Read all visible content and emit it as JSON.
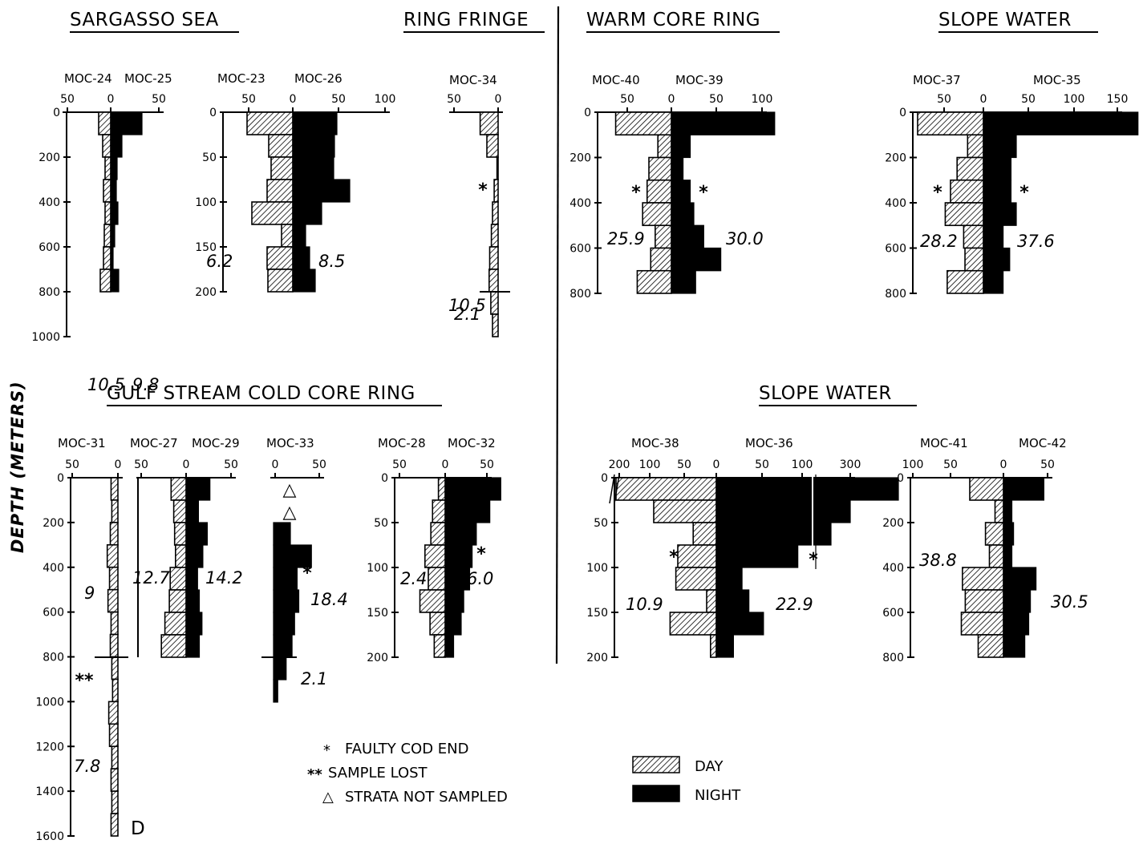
{
  "chart_data": {
    "type": "bar",
    "ylabel": "DEPTH (METERS)",
    "colors": {
      "day": "#ffffff",
      "night": "#000000",
      "hatch": "#000000"
    },
    "regions": [
      {
        "title": "SARGASSO SEA"
      },
      {
        "title": "RING FRINGE"
      },
      {
        "title": "WARM CORE RING"
      },
      {
        "title": "SLOPE WATER"
      },
      {
        "title": "GULF STREAM COLD CORE RING"
      },
      {
        "title": "SLOPE WATER"
      }
    ],
    "panels": [
      {
        "day_label": "MOC-24",
        "night_label": "MOC-25",
        "x_ticks": [
          "50",
          "0",
          "50"
        ],
        "x_tick_values": [
          -50,
          0,
          50
        ],
        "y_ticks": [
          "0",
          "200",
          "400",
          "600",
          "800",
          "1000"
        ],
        "y_range": [
          0,
          1000
        ],
        "day_total": "10.5",
        "night_total": "9.8",
        "day": [
          [
            0,
            100,
            -15
          ],
          [
            100,
            200,
            -10
          ],
          [
            200,
            300,
            -7
          ],
          [
            300,
            400,
            -9
          ],
          [
            400,
            500,
            -7
          ],
          [
            500,
            600,
            -8
          ],
          [
            600,
            700,
            -9
          ],
          [
            700,
            800,
            -13
          ]
        ],
        "night": [
          [
            0,
            100,
            39
          ],
          [
            100,
            200,
            14
          ],
          [
            200,
            300,
            8
          ],
          [
            300,
            400,
            7
          ],
          [
            400,
            500,
            9
          ],
          [
            500,
            600,
            5
          ],
          [
            600,
            700,
            3
          ],
          [
            700,
            800,
            10
          ]
        ]
      },
      {
        "day_label": "MOC-23",
        "night_label": "MOC-26",
        "x_ticks": [
          "50",
          "0",
          "50",
          "100"
        ],
        "x_tick_values": [
          -50,
          0,
          50,
          100
        ],
        "y_ticks": [
          "0",
          "50",
          "100",
          "150",
          "200"
        ],
        "y_range": [
          0,
          200
        ],
        "day_total": "6.2",
        "night_total": "8.5",
        "day": [
          [
            0,
            25,
            -57
          ],
          [
            25,
            50,
            -30
          ],
          [
            50,
            75,
            -27
          ],
          [
            75,
            100,
            -32
          ],
          [
            100,
            125,
            -51
          ],
          [
            125,
            150,
            -14
          ],
          [
            150,
            175,
            -32
          ],
          [
            175,
            200,
            -31
          ]
        ],
        "night": [
          [
            0,
            25,
            55
          ],
          [
            25,
            50,
            52
          ],
          [
            50,
            75,
            51
          ],
          [
            75,
            100,
            71
          ],
          [
            100,
            125,
            36
          ],
          [
            125,
            150,
            16
          ],
          [
            150,
            175,
            21
          ],
          [
            175,
            200,
            28
          ]
        ]
      },
      {
        "day_label": "MOC-34",
        "x_ticks": [
          "50",
          "0"
        ],
        "x_tick_values": [
          -50,
          0
        ],
        "y_ticks": [],
        "y_range": [
          0,
          1000
        ],
        "day_total": "10.5",
        "lower_total": "2.1",
        "day": [
          [
            0,
            100,
            -32
          ],
          [
            100,
            200,
            -20
          ],
          [
            200,
            300,
            -2
          ],
          [
            300,
            400,
            -7
          ],
          [
            400,
            500,
            -10
          ],
          [
            500,
            600,
            -12
          ],
          [
            600,
            700,
            -15
          ],
          [
            700,
            800,
            -16
          ],
          [
            800,
            900,
            -13
          ],
          [
            900,
            1000,
            -10
          ]
        ],
        "night": []
      },
      {
        "day_label": "MOC-40",
        "night_label": "MOC-39",
        "x_ticks": [
          "50",
          "0",
          "50",
          "100"
        ],
        "x_tick_values": [
          -50,
          0,
          50,
          100
        ],
        "y_ticks": [
          "0",
          "200",
          "400",
          "600",
          "800"
        ],
        "y_range": [
          0,
          800
        ],
        "day_total": "25.9",
        "night_total": "30.0",
        "day": [
          [
            0,
            100,
            -62
          ],
          [
            100,
            200,
            -15
          ],
          [
            200,
            300,
            -25
          ],
          [
            300,
            400,
            -27
          ],
          [
            400,
            500,
            -32
          ],
          [
            500,
            600,
            -18
          ],
          [
            600,
            700,
            -23
          ],
          [
            700,
            800,
            -38
          ]
        ],
        "night": [
          [
            0,
            100,
            115
          ],
          [
            100,
            200,
            21
          ],
          [
            200,
            300,
            13
          ],
          [
            300,
            400,
            21
          ],
          [
            400,
            500,
            25
          ],
          [
            500,
            600,
            36
          ],
          [
            600,
            700,
            55
          ],
          [
            700,
            800,
            27
          ]
        ]
      },
      {
        "day_label": "MOC-37",
        "night_label": "MOC-35",
        "x_ticks": [
          "50",
          "0",
          "50",
          "100",
          "150"
        ],
        "x_tick_values": [
          -50,
          0,
          50,
          100,
          150
        ],
        "y_ticks": [
          "0",
          "200",
          "400",
          "600",
          "800"
        ],
        "y_range": [
          0,
          800
        ],
        "day_total": "28.2",
        "night_total": "37.6",
        "day": [
          [
            0,
            100,
            -100
          ],
          [
            100,
            200,
            -24
          ],
          [
            200,
            300,
            -40
          ],
          [
            300,
            400,
            -50
          ],
          [
            400,
            500,
            -58
          ],
          [
            500,
            600,
            -30
          ],
          [
            600,
            700,
            -28
          ],
          [
            700,
            800,
            -55
          ]
        ],
        "night": [
          [
            0,
            100,
            235
          ],
          [
            100,
            200,
            50
          ],
          [
            200,
            300,
            42
          ],
          [
            300,
            400,
            42
          ],
          [
            400,
            500,
            50
          ],
          [
            500,
            600,
            30
          ],
          [
            600,
            700,
            40
          ],
          [
            700,
            800,
            30
          ]
        ]
      },
      {
        "day_label": "MOC-31",
        "x_ticks": [
          "50",
          "0"
        ],
        "x_tick_values": [
          -50,
          0
        ],
        "y_ticks": [
          "0",
          "200",
          "400",
          "600",
          "800",
          "1000",
          "1200",
          "1400",
          "1600"
        ],
        "y_range": [
          0,
          1600
        ],
        "day_total": "9",
        "lower_total": "7.8",
        "corner_letter": "D",
        "day": [
          [
            0,
            100,
            -9
          ],
          [
            100,
            200,
            -8
          ],
          [
            200,
            300,
            -10
          ],
          [
            300,
            400,
            -14
          ],
          [
            400,
            500,
            -11
          ],
          [
            500,
            600,
            -13
          ],
          [
            600,
            700,
            -9
          ],
          [
            700,
            800,
            -10
          ],
          [
            800,
            900,
            -8
          ],
          [
            900,
            1000,
            -7
          ],
          [
            1000,
            1100,
            -12
          ],
          [
            1100,
            1200,
            -11
          ],
          [
            1200,
            1300,
            -8
          ],
          [
            1300,
            1400,
            -9
          ],
          [
            1400,
            1500,
            -8
          ],
          [
            1500,
            1600,
            -9
          ]
        ],
        "night": []
      },
      {
        "day_label": "MOC-27",
        "night_label": "MOC-29",
        "x_ticks": [
          "50",
          "0",
          "50"
        ],
        "x_tick_values": [
          -50,
          0,
          50
        ],
        "y_ticks": [],
        "y_range": [
          0,
          800
        ],
        "day_total": "12.7",
        "night_total": "14.2",
        "day": [
          [
            0,
            100,
            -17
          ],
          [
            100,
            200,
            -14
          ],
          [
            200,
            300,
            -13
          ],
          [
            300,
            400,
            -12
          ],
          [
            400,
            500,
            -18
          ],
          [
            500,
            600,
            -19
          ],
          [
            600,
            700,
            -24
          ],
          [
            700,
            800,
            -28
          ]
        ],
        "night": [
          [
            0,
            100,
            27
          ],
          [
            100,
            200,
            14
          ],
          [
            200,
            300,
            24
          ],
          [
            300,
            400,
            19
          ],
          [
            400,
            500,
            13
          ],
          [
            500,
            600,
            15
          ],
          [
            600,
            700,
            18
          ],
          [
            700,
            800,
            15
          ]
        ]
      },
      {
        "day_label": "MOC-33",
        "x_ticks": [
          "0",
          "50"
        ],
        "x_tick_values": [
          0,
          50
        ],
        "y_ticks": [],
        "y_range": [
          0,
          1000
        ],
        "night_total": "18.4",
        "lower_total": "2.1",
        "not_sampled": [
          [
            0,
            100
          ],
          [
            100,
            200
          ]
        ],
        "day": [],
        "night": [
          [
            200,
            300,
            20
          ],
          [
            300,
            400,
            45
          ],
          [
            400,
            500,
            28
          ],
          [
            500,
            600,
            30
          ],
          [
            600,
            700,
            25
          ],
          [
            700,
            800,
            22
          ],
          [
            800,
            900,
            15
          ],
          [
            900,
            1000,
            5
          ]
        ]
      },
      {
        "day_label": "MOC-28",
        "night_label": "MOC-32",
        "x_ticks": [
          "50",
          "0",
          "50"
        ],
        "x_tick_values": [
          -50,
          0,
          50
        ],
        "y_ticks": [
          "0",
          "50",
          "100",
          "150",
          "200"
        ],
        "y_range": [
          0,
          200
        ],
        "day_total": "2.4",
        "night_total": "6.0",
        "day": [
          [
            0,
            25,
            -8
          ],
          [
            25,
            50,
            -15
          ],
          [
            50,
            75,
            -17
          ],
          [
            75,
            100,
            -24
          ],
          [
            100,
            125,
            -20
          ],
          [
            125,
            150,
            -30
          ],
          [
            150,
            175,
            -18
          ],
          [
            175,
            200,
            -13
          ]
        ],
        "night": [
          [
            0,
            25,
            66
          ],
          [
            25,
            50,
            53
          ],
          [
            50,
            75,
            37
          ],
          [
            75,
            100,
            32
          ],
          [
            100,
            125,
            29
          ],
          [
            125,
            150,
            22
          ],
          [
            150,
            175,
            19
          ],
          [
            175,
            200,
            10
          ]
        ]
      },
      {
        "day_label": "MOC-38",
        "night_label": "MOC-36",
        "x_ticks": [
          "200",
          "100",
          "50",
          "0",
          "50",
          "100",
          "300"
        ],
        "x_tick_values": [
          -200,
          -100,
          -50,
          0,
          50,
          100,
          300
        ],
        "y_ticks": [
          "0",
          "50",
          "100",
          "150",
          "200"
        ],
        "y_range": [
          0,
          200
        ],
        "day_total": "10.9",
        "night_total": "22.9",
        "day": [
          [
            0,
            25,
            -200
          ],
          [
            25,
            50,
            -65
          ],
          [
            50,
            75,
            -24
          ],
          [
            75,
            100,
            -40
          ],
          [
            100,
            125,
            -42
          ],
          [
            125,
            150,
            -10
          ],
          [
            150,
            175,
            -48
          ],
          [
            175,
            200,
            -6
          ]
        ],
        "night": [
          [
            0,
            25,
            300
          ],
          [
            25,
            50,
            200
          ],
          [
            50,
            75,
            160
          ],
          [
            75,
            100,
            95
          ],
          [
            100,
            125,
            30
          ],
          [
            125,
            150,
            38
          ],
          [
            150,
            175,
            55
          ],
          [
            175,
            200,
            20
          ]
        ]
      },
      {
        "day_label": "MOC-41",
        "night_label": "MOC-42",
        "x_ticks": [
          "100",
          "50",
          "0",
          "50"
        ],
        "x_tick_values": [
          -100,
          -50,
          0,
          50
        ],
        "y_ticks": [
          "0",
          "200",
          "400",
          "600",
          "800"
        ],
        "y_range": [
          0,
          800
        ],
        "day_total": "38.8",
        "night_total": "30.5",
        "day": [
          [
            0,
            100,
            -60
          ],
          [
            100,
            200,
            -15
          ],
          [
            200,
            300,
            -32
          ],
          [
            300,
            400,
            -25
          ],
          [
            400,
            500,
            -73
          ],
          [
            500,
            600,
            -68
          ],
          [
            600,
            700,
            -75
          ],
          [
            700,
            800,
            -45
          ]
        ],
        "night": [
          [
            0,
            100,
            72
          ],
          [
            100,
            200,
            15
          ],
          [
            200,
            300,
            18
          ],
          [
            300,
            400,
            15
          ],
          [
            400,
            500,
            58
          ],
          [
            500,
            600,
            48
          ],
          [
            600,
            700,
            45
          ],
          [
            700,
            800,
            38
          ]
        ]
      }
    ],
    "legend": {
      "faulty": "FAULTY COD END",
      "faulty_sym": "*",
      "lost": "SAMPLE LOST",
      "lost_sym": "**",
      "strata": "STRATA NOT SAMPLED",
      "strata_sym": "△",
      "day": "DAY",
      "night": "NIGHT"
    },
    "markers": {
      "star": "*",
      "double_star": "**",
      "triangle": "△"
    }
  }
}
